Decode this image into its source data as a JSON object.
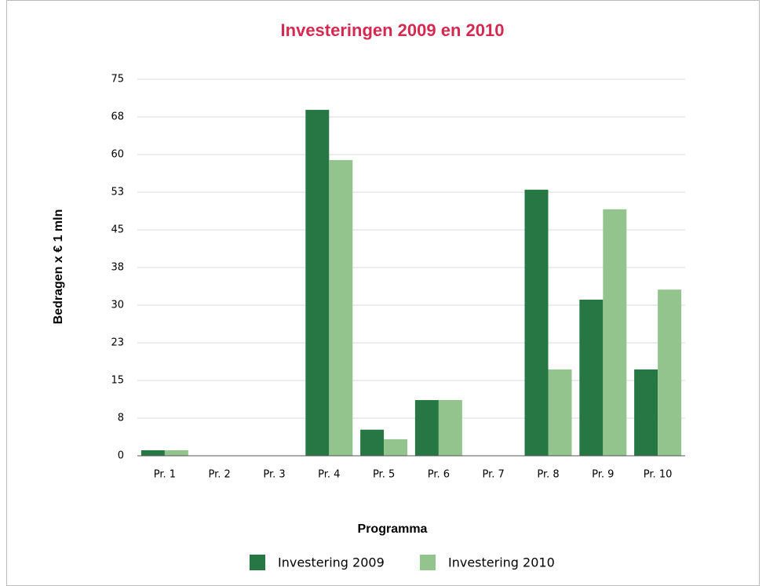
{
  "chart_data": {
    "type": "bar",
    "title": "Investeringen 2009 en 2010",
    "x_label": "Programma",
    "y_label": "Bedragen x € 1 mln",
    "categories": [
      "Pr. 1",
      "Pr. 2",
      "Pr. 3",
      "Pr. 4",
      "Pr. 5",
      "Pr. 6",
      "Pr. 7",
      "Pr. 8",
      "Pr. 9",
      "Pr. 10"
    ],
    "series": [
      {
        "name": "Investering 2009",
        "color": "#267744",
        "values": [
          1.1,
          0,
          0,
          68.9,
          5.2,
          11.1,
          0,
          53,
          31.1,
          17.2
        ]
      },
      {
        "name": "Investering 2010",
        "color": "#94c48e",
        "values": [
          1.1,
          0,
          0,
          58.9,
          3.3,
          11.1,
          0,
          17.2,
          49.1,
          33.1
        ]
      }
    ],
    "ylim": [
      0,
      75
    ],
    "yticks": [
      0,
      {
        "value": 7.5,
        "label": "8"
      },
      15,
      {
        "value": 22.5,
        "label": "23"
      },
      30,
      {
        "value": 37.5,
        "label": "38"
      },
      45,
      {
        "value": 52.5,
        "label": "53"
      },
      60,
      {
        "value": 67.5,
        "label": "68"
      },
      75
    ],
    "grid": true,
    "legend": "bottom"
  }
}
